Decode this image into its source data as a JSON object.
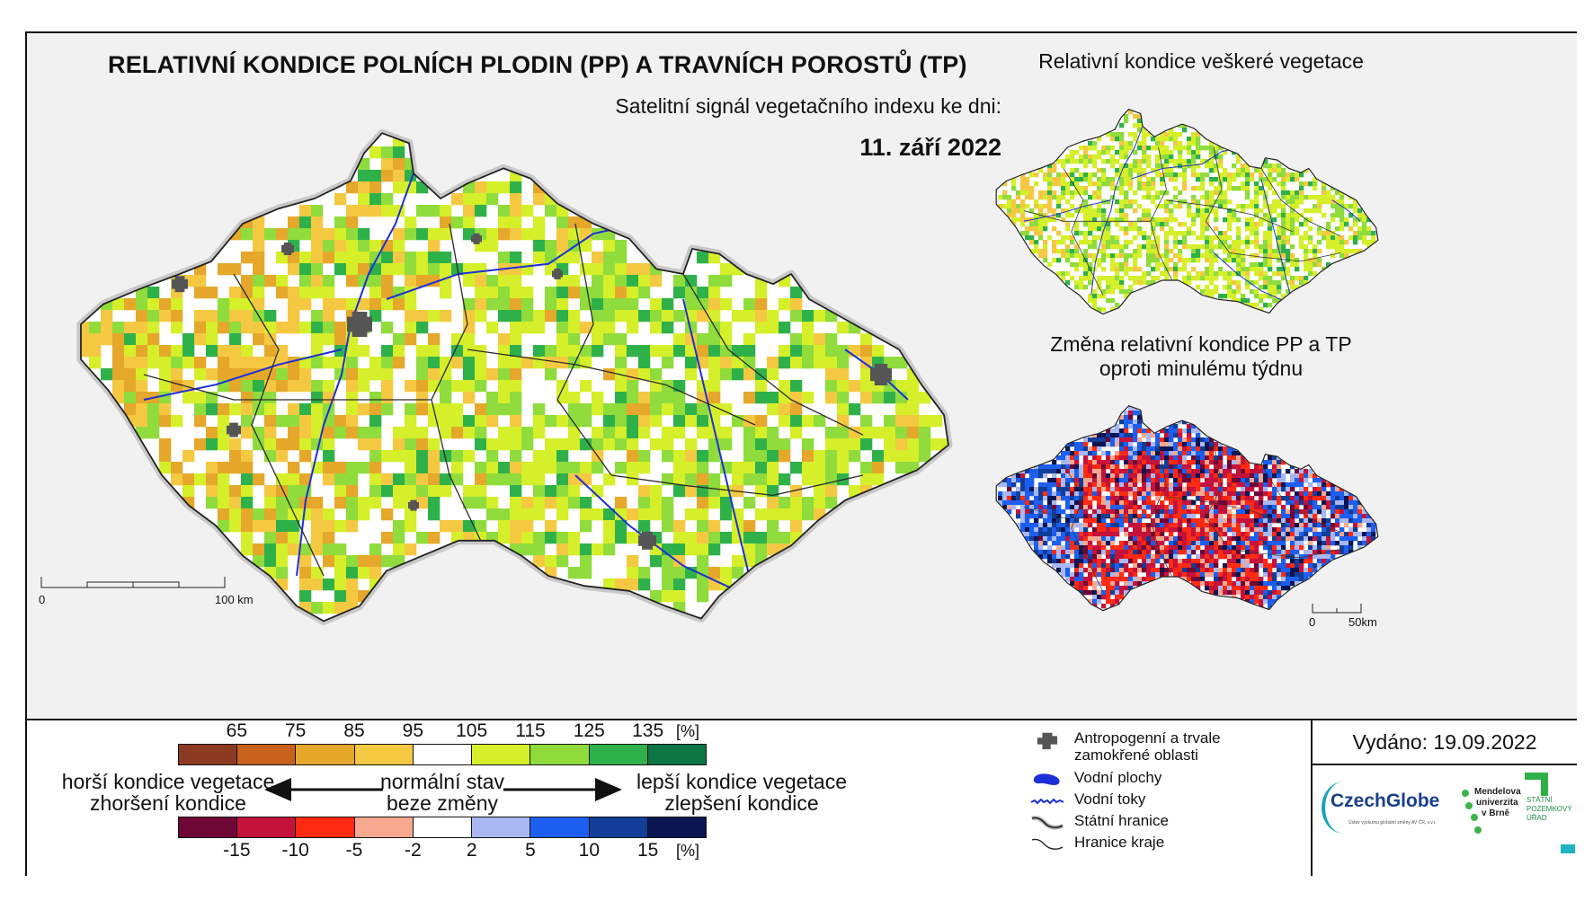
{
  "header": {
    "title": "RELATIVNÍ KONDICE POLNÍCH PLODIN (PP) A TRAVNÍCH POROSTŮ (TP)",
    "subtitle": "Satelitní signál vegetačního indexu ke dni:",
    "date": "11. září 2022"
  },
  "insets": {
    "top_title": "Relativní kondice veškeré vegetace",
    "bottom_title_line1": "Změna relativní kondice PP a TP",
    "bottom_title_line2": "oproti minulému týdnu"
  },
  "scalebars": {
    "main": {
      "start": "0",
      "end": "100 km"
    },
    "inset": {
      "start": "0",
      "end": "50km"
    }
  },
  "legend": {
    "condition": {
      "ticks": [
        "65",
        "75",
        "85",
        "95",
        "105",
        "115",
        "125",
        "135"
      ],
      "unit": "[%]",
      "colors": [
        "#8c3a22",
        "#c8611c",
        "#e5a82b",
        "#f5c842",
        "#ffffff",
        "#d5ef2a",
        "#8fdc3c",
        "#2fb14a",
        "#0e7544"
      ]
    },
    "change": {
      "ticks": [
        "-15",
        "-10",
        "-5",
        "-2",
        "2",
        "5",
        "10",
        "15"
      ],
      "unit": "[%]",
      "colors": [
        "#6e0636",
        "#c4123b",
        "#ff2a12",
        "#f7a88f",
        "#ffffff",
        "#a9b8f0",
        "#1c5ef0",
        "#123d98",
        "#0b1552"
      ]
    },
    "worse_line1": "horší kondice vegetace",
    "worse_line2": "zhoršení kondice",
    "normal_line1": "normální stav",
    "normal_line2": "beze změny",
    "better_line1": "lepší kondice vegetace",
    "better_line2": "zlepšení kondice"
  },
  "symbols": {
    "anthropogenic_line1": "Antropogenní a trvale",
    "anthropogenic_line2": "zamokřené oblasti",
    "water_bodies": "Vodní plochy",
    "water_streams": "Vodní toky",
    "state_border": "Státní hranice",
    "region_border": "Hranice kraje"
  },
  "issued": {
    "text": "Vydáno: 19.09.2022"
  },
  "logos": {
    "czechglobe": "CzechGlobe",
    "czechglobe_sub": "Ústav výzkumu globální změny AV ČR, v.v.i.",
    "mendel_line1": "Mendelova",
    "mendel_line2": "univerzita",
    "mendel_line3": "v Brně",
    "spu_line1": "STÁTNÍ",
    "spu_line2": "POZEMKOVÝ",
    "spu_line3": "ÚŘAD"
  }
}
